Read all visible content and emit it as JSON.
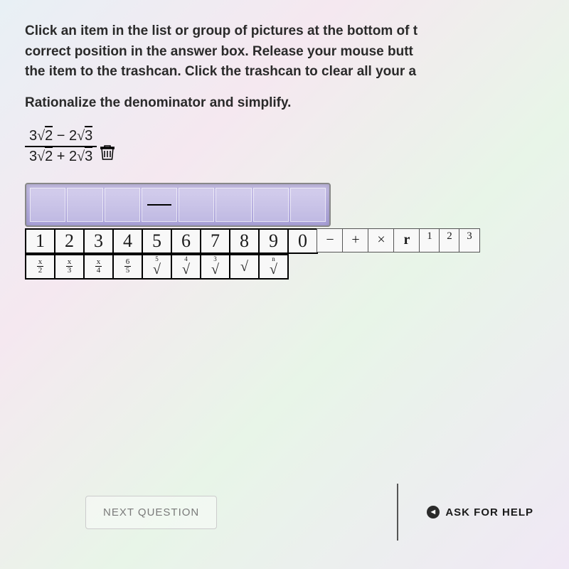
{
  "instructions": {
    "line1": "Click an item in the list or group of pictures at the bottom of t",
    "line2": "correct position in the answer box. Release your mouse butt",
    "line3": "the item to the trashcan. Click the trashcan to clear all your a",
    "prompt": "Rationalize the denominator and simplify."
  },
  "expression": {
    "numerator": {
      "coef1": "3",
      "rad1": "2",
      "op": "−",
      "coef2": "2",
      "rad2": "3"
    },
    "denominator": {
      "coef1": "3",
      "rad1": "2",
      "op": "+",
      "coef2": "2",
      "rad2": "3"
    }
  },
  "palette": {
    "numbers": [
      "1",
      "2",
      "3",
      "4",
      "5",
      "6",
      "7",
      "8",
      "9",
      "0"
    ],
    "operators": [
      "−",
      "+",
      "×"
    ],
    "var": "r",
    "superscripts": [
      "1",
      "2",
      "3"
    ],
    "fractions": [
      {
        "n": "x",
        "d": "2"
      },
      {
        "n": "x",
        "d": "3"
      },
      {
        "n": "x",
        "d": "4"
      },
      {
        "n": "6",
        "d": "5"
      }
    ],
    "roots": [
      "5",
      "4",
      "3",
      "",
      ""
    ],
    "rootIndexLabels": [
      "5",
      "4",
      "3",
      "",
      "n"
    ]
  },
  "answer_slots": 8,
  "footer": {
    "next": "NEXT QUESTION",
    "help": "ASK FOR HELP"
  },
  "colors": {
    "slot_bg": "#b8b0e0",
    "border": "#000000"
  }
}
